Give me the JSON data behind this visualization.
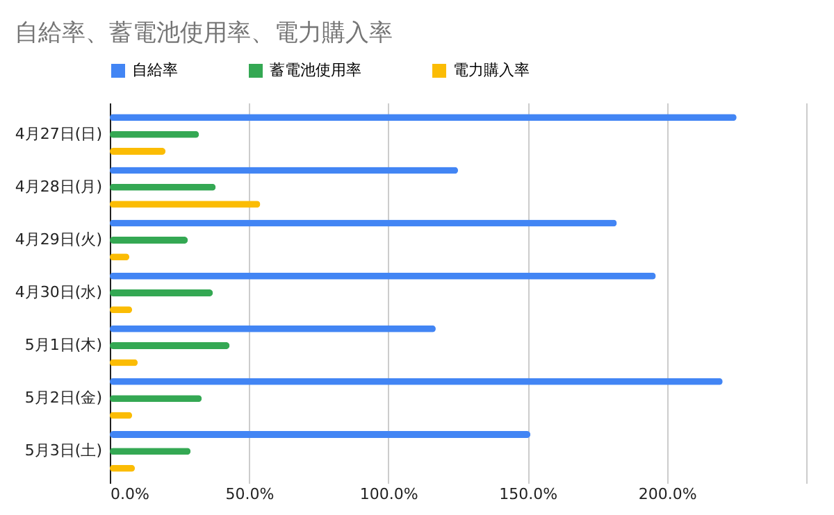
{
  "chart_data": {
    "type": "bar",
    "orientation": "horizontal",
    "title": "自給率、蓄電池使用率、電力購入率",
    "categories": [
      "4月27日(日)",
      "4月28日(月)",
      "4月29日(火)",
      "4月30日(水)",
      "5月1日(木)",
      "5月2日(金)",
      "5月3日(土)"
    ],
    "series": [
      {
        "name": "自給率",
        "color": "#4285f4",
        "values": [
          225,
          125,
          182,
          196,
          117,
          220,
          151
        ]
      },
      {
        "name": "蓄電池使用率",
        "color": "#34a853",
        "values": [
          32,
          38,
          28,
          37,
          43,
          33,
          29
        ]
      },
      {
        "name": "電力購入率",
        "color": "#fbbc04",
        "values": [
          20,
          54,
          7,
          8,
          10,
          8,
          9
        ]
      }
    ],
    "xlim": [
      0,
      250
    ],
    "xticks": [
      {
        "value": 0,
        "label": "0.0%"
      },
      {
        "value": 50,
        "label": "50.0%"
      },
      {
        "value": 100,
        "label": "100.0%"
      },
      {
        "value": 150,
        "label": "150.0%"
      },
      {
        "value": 200,
        "label": "200.0%"
      },
      {
        "value": 250,
        "label": null
      }
    ],
    "grid": "x",
    "legend": "top"
  }
}
